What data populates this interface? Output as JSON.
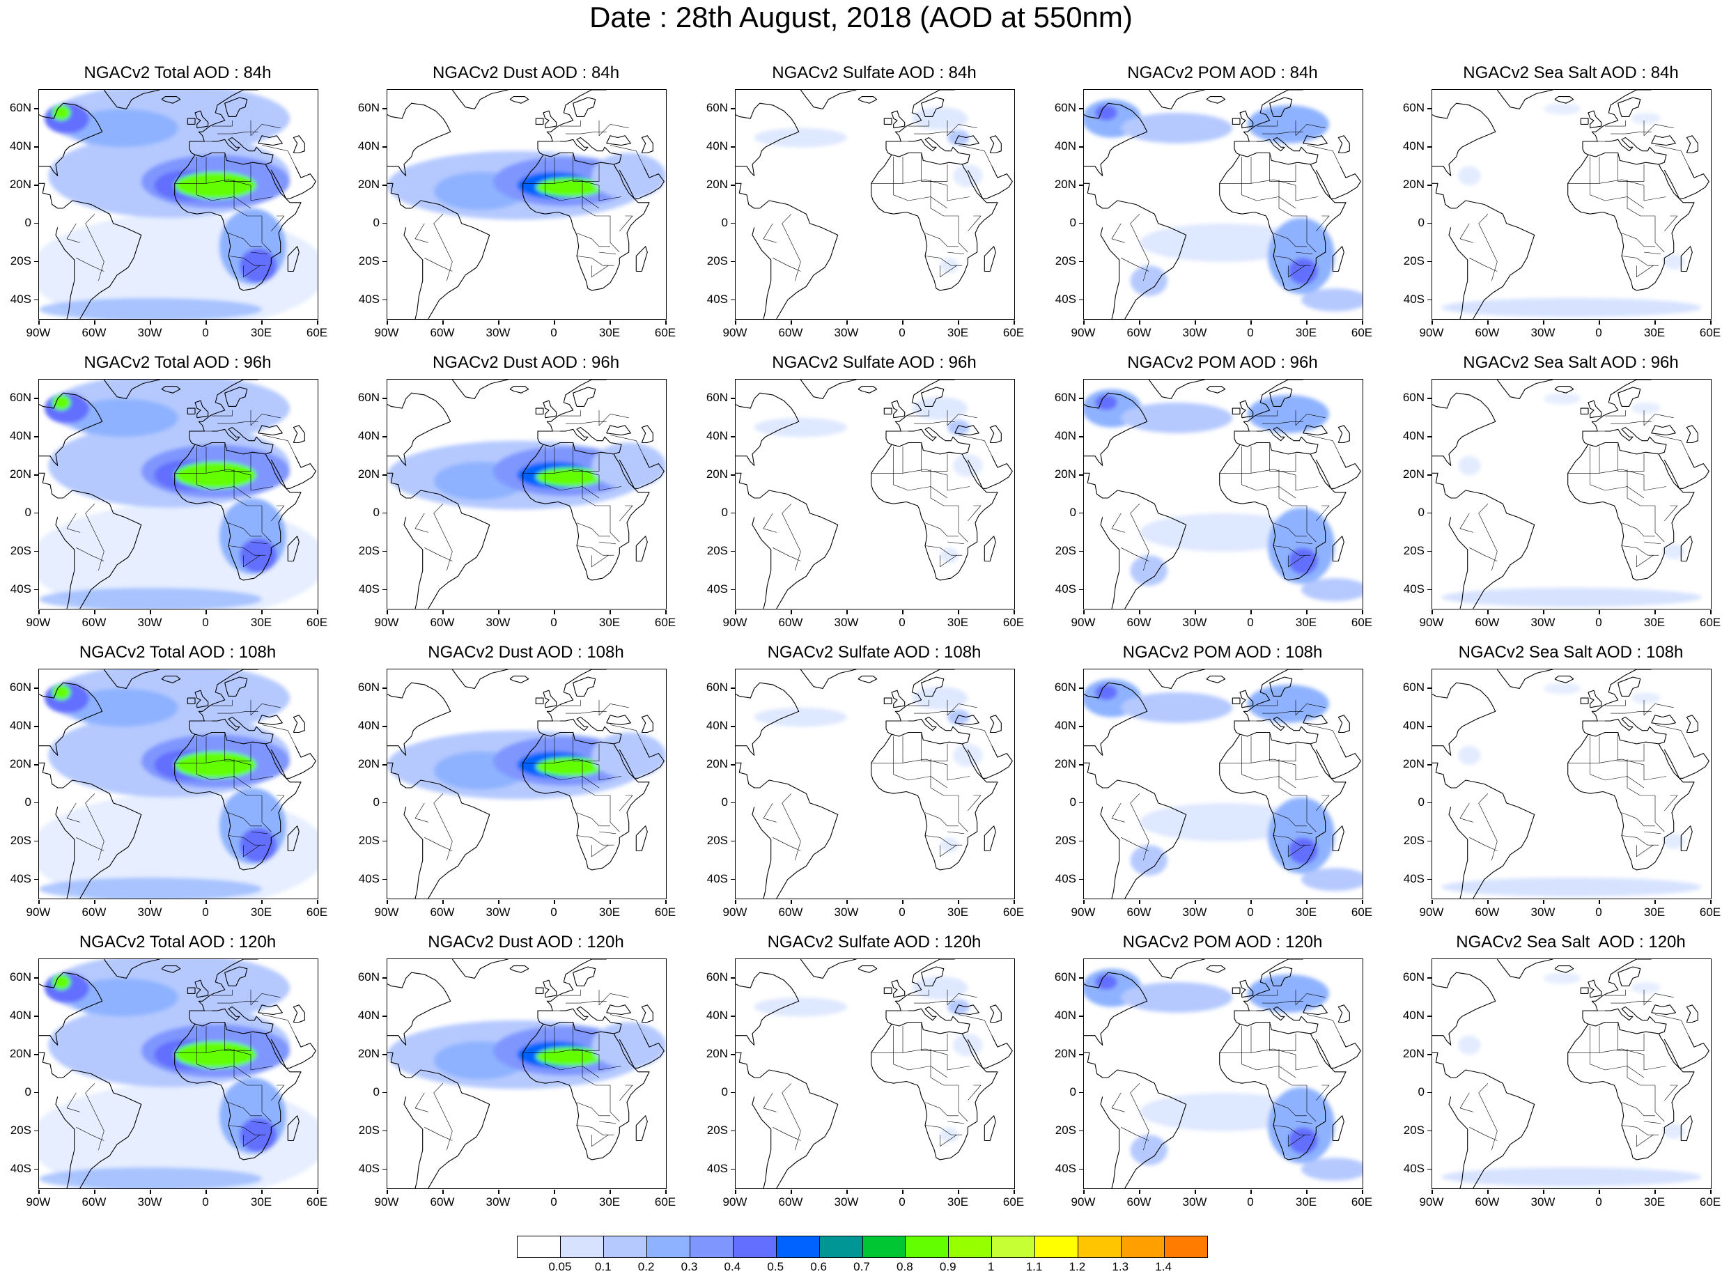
{
  "title": "Date : 28th August, 2018 (AOD at 550nm)",
  "panels": [
    {
      "title": "NGACv2 Total AOD : 84h",
      "field": "total"
    },
    {
      "title": "NGACv2 Dust AOD : 84h",
      "field": "dust"
    },
    {
      "title": "NGACv2 Sulfate AOD : 84h",
      "field": "sulfate"
    },
    {
      "title": "NGACv2 POM AOD : 84h",
      "field": "pom"
    },
    {
      "title": "NGACv2 Sea Salt AOD : 84h",
      "field": "seasalt"
    },
    {
      "title": "NGACv2 Total AOD : 96h",
      "field": "total"
    },
    {
      "title": "NGACv2 Dust AOD : 96h",
      "field": "dust"
    },
    {
      "title": "NGACv2 Sulfate AOD : 96h",
      "field": "sulfate"
    },
    {
      "title": "NGACv2 POM AOD : 96h",
      "field": "pom"
    },
    {
      "title": "NGACv2 Sea Salt AOD : 96h",
      "field": "seasalt"
    },
    {
      "title": "NGACv2 Total AOD : 108h",
      "field": "total"
    },
    {
      "title": "NGACv2 Dust AOD : 108h",
      "field": "dust"
    },
    {
      "title": "NGACv2 Sulfate AOD : 108h",
      "field": "sulfate"
    },
    {
      "title": "NGACv2 POM AOD : 108h",
      "field": "pom"
    },
    {
      "title": "NGACv2 Sea Salt AOD : 108h",
      "field": "seasalt"
    },
    {
      "title": "NGACv2 Total AOD : 120h",
      "field": "total"
    },
    {
      "title": "NGACv2 Dust AOD : 120h",
      "field": "dust"
    },
    {
      "title": "NGACv2 Sulfate AOD : 120h",
      "field": "sulfate"
    },
    {
      "title": "NGACv2 POM AOD : 120h",
      "field": "pom"
    },
    {
      "title": "NGACv2 Sea Salt  AOD : 120h",
      "field": "seasalt"
    }
  ],
  "map_extent": {
    "lon": [
      -90,
      60
    ],
    "lat": [
      -50,
      70
    ]
  },
  "lat_ticks": [
    {
      "value": 60,
      "label": "60N"
    },
    {
      "value": 40,
      "label": "40N"
    },
    {
      "value": 20,
      "label": "20N"
    },
    {
      "value": 0,
      "label": "0"
    },
    {
      "value": -20,
      "label": "20S"
    },
    {
      "value": -40,
      "label": "40S"
    }
  ],
  "lon_ticks": [
    {
      "value": -90,
      "label": "90W"
    },
    {
      "value": -60,
      "label": "60W"
    },
    {
      "value": -30,
      "label": "30W"
    },
    {
      "value": 0,
      "label": "0"
    },
    {
      "value": 30,
      "label": "30E"
    },
    {
      "value": 60,
      "label": "60E"
    }
  ],
  "colorbar": {
    "colors": [
      "#ffffff",
      "#d6e2ff",
      "#b5c9ff",
      "#8eb2ff",
      "#7f96ff",
      "#6370ff",
      "#0063ff",
      "#009696",
      "#00c633",
      "#63ff00",
      "#96ff00",
      "#c6ff33",
      "#ffff00",
      "#ffc600",
      "#ffa000",
      "#ff7c00",
      "#ff1900"
    ],
    "labels": [
      "0.05",
      "0.1",
      "0.2",
      "0.3",
      "0.4",
      "0.5",
      "0.6",
      "0.7",
      "0.8",
      "0.9",
      "1",
      "1.1",
      "1.2",
      "1.3",
      "1.4"
    ]
  }
}
